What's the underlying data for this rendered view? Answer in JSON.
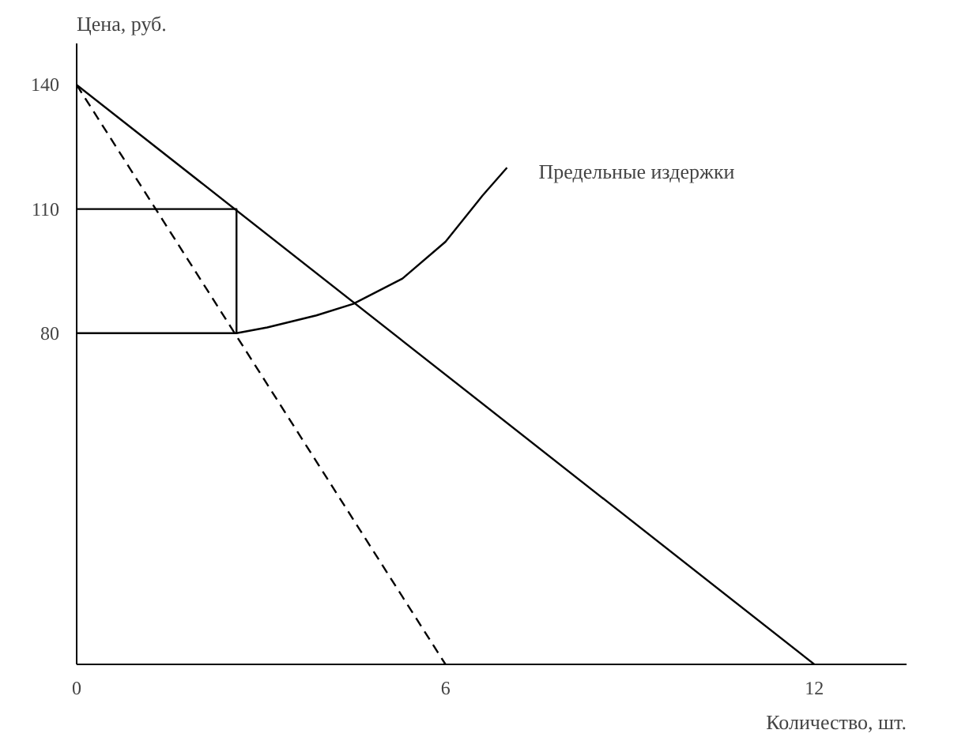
{
  "chart_data": {
    "type": "line",
    "xlabel": "Количество, шт.",
    "ylabel": "Цена, руб.",
    "xlim": [
      0,
      13.5
    ],
    "ylim": [
      0,
      150
    ],
    "xticks": [
      0,
      6,
      12
    ],
    "yticks": [
      80,
      110,
      140
    ],
    "grid": false,
    "marker": "none",
    "series": [
      {
        "color": "#000000",
        "x": [
          0,
          12
        ],
        "values": [
          140,
          0
        ],
        "line_style": "solid"
      },
      {
        "color": "#000000",
        "x": [
          0,
          6
        ],
        "values": [
          140,
          0
        ],
        "line_style": "dashed"
      },
      {
        "color": "#000000",
        "x": [
          0,
          2.6,
          2.6,
          0
        ],
        "values": [
          110,
          110,
          80,
          80
        ],
        "line_style": "solid"
      },
      {
        "name": "Предельные издержки",
        "color": "#000000",
        "x": [
          2.6,
          3.1,
          3.9,
          4.5,
          5.3,
          6.0,
          6.6,
          7.0
        ],
        "values": [
          80,
          81.4,
          84.3,
          87.1,
          93.2,
          102.1,
          113.2,
          120
        ],
        "line_style": "solid"
      }
    ]
  }
}
